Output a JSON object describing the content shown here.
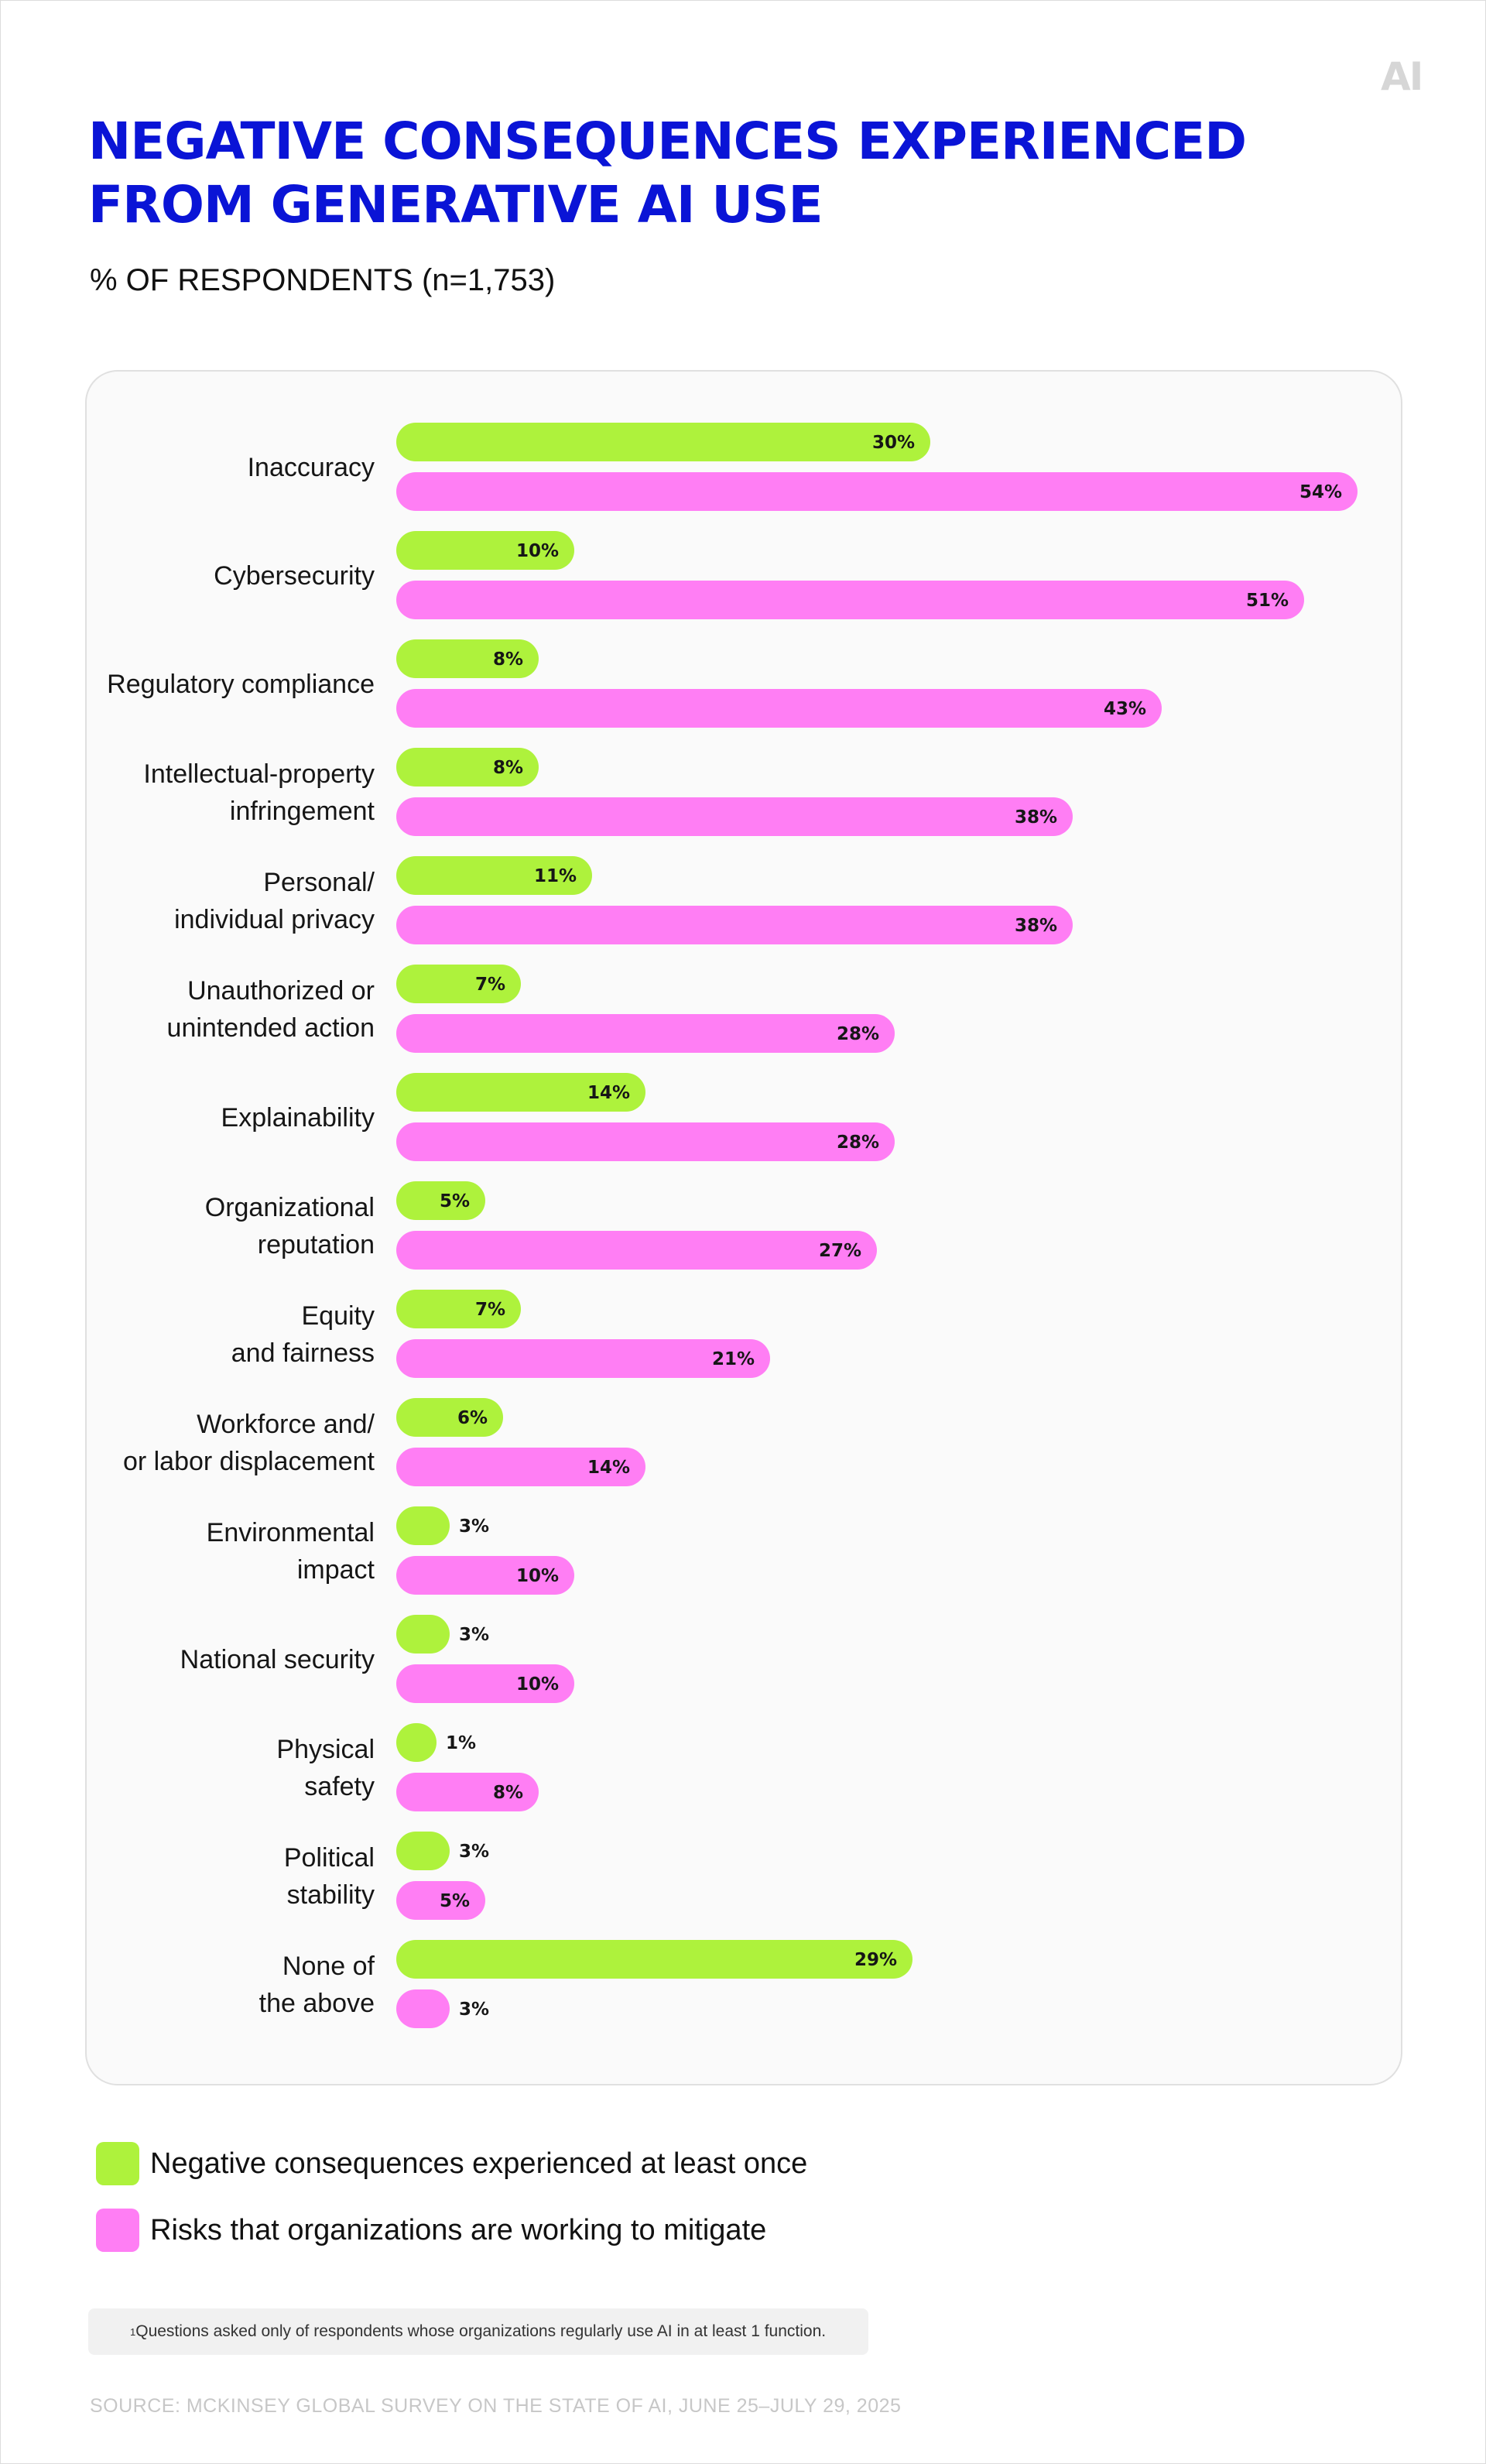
{
  "brand": {
    "logo_text": "AI"
  },
  "header": {
    "title_lines": [
      "NEGATIVE CONSEQUENCES EXPERIENCED",
      "FROM GENERATIVE AI USE"
    ],
    "subtitle": "% OF RESPONDENTS (n=1,753)"
  },
  "colors": {
    "title": "#0a14d6",
    "experienced": "#aef23c",
    "mitigating": "#ff7ef4",
    "card_bg": "#fafafa"
  },
  "chart_data": {
    "type": "bar",
    "orientation": "horizontal",
    "grid": false,
    "value_suffix": "%",
    "categories": [
      [
        "Inaccuracy"
      ],
      [
        "Cybersecurity"
      ],
      [
        "Regulatory compliance"
      ],
      [
        "Intellectual-property",
        "infringement"
      ],
      [
        "Personal/",
        "individual privacy"
      ],
      [
        "Unauthorized or",
        "unintended action"
      ],
      [
        "Explainability"
      ],
      [
        "Organizational",
        "reputation"
      ],
      [
        "Equity",
        "and fairness"
      ],
      [
        "Workforce and/",
        "or labor displacement"
      ],
      [
        "Environmental",
        "impact"
      ],
      [
        "National security"
      ],
      [
        "Physical",
        "safety"
      ],
      [
        "Political",
        "stability"
      ],
      [
        "None of",
        "the above"
      ]
    ],
    "series": [
      {
        "name": "Negative consequences experienced at least once",
        "color": "#aef23c",
        "values": [
          30,
          10,
          8,
          8,
          11,
          7,
          14,
          5,
          7,
          6,
          3,
          3,
          1,
          3,
          29
        ]
      },
      {
        "name": "Risks that organizations are working to mitigate",
        "color": "#ff7ef4",
        "values": [
          54,
          51,
          43,
          38,
          38,
          28,
          28,
          27,
          21,
          14,
          10,
          10,
          8,
          5,
          3
        ]
      }
    ]
  },
  "legend": [
    {
      "label": "Negative consequences experienced at least once",
      "color": "#aef23c"
    },
    {
      "label": "Risks that organizations are working to mitigate",
      "color": "#ff7ef4"
    }
  ],
  "footnote": {
    "marker": "1",
    "text": "Questions asked only of respondents whose organizations regularly use AI in at least 1 function."
  },
  "source": "SOURCE: MCKINSEY GLOBAL SURVEY ON THE STATE OF AI, JUNE 25–JULY 29, 2025"
}
